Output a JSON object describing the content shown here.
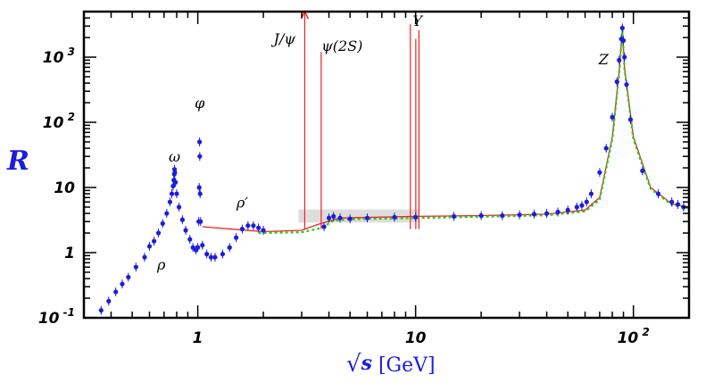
{
  "chart_data": {
    "type": "scatter",
    "title": "",
    "xlabel": {
      "prefix": "√",
      "var": "s",
      "unit": " [GeV]"
    },
    "ylabel": "R",
    "xscale": "log",
    "yscale": "log",
    "xlim": [
      0.3,
      180
    ],
    "ylim": [
      0.1,
      5000
    ],
    "x_ticks": [
      {
        "value": 1,
        "label": "1",
        "exp": ""
      },
      {
        "value": 10,
        "label": "10",
        "exp": ""
      },
      {
        "value": 100,
        "label": "10",
        "exp": "2"
      }
    ],
    "y_ticks": [
      {
        "value": 0.1,
        "label": "10",
        "exp": "-1"
      },
      {
        "value": 1,
        "label": "1",
        "exp": ""
      },
      {
        "value": 10,
        "label": "10",
        "exp": ""
      },
      {
        "value": 100,
        "label": "10",
        "exp": "2"
      },
      {
        "value": 1000,
        "label": "10",
        "exp": "3"
      }
    ],
    "annotations": [
      {
        "text": "ρ",
        "x": 0.68,
        "y": 0.55
      },
      {
        "text": "ω",
        "x": 0.782,
        "y": 25
      },
      {
        "text": "φ",
        "x": 1.02,
        "y": 165
      },
      {
        "text": "ρ′",
        "x": 1.6,
        "y": 4.9
      },
      {
        "text": "J/ψ",
        "x": 2.5,
        "y": 1600
      },
      {
        "text": "ψ(2S)",
        "x": 4.6,
        "y": 1250
      },
      {
        "text": "Υ",
        "x": 10.2,
        "y": 3000
      },
      {
        "text": "Z",
        "x": 73,
        "y": 780
      }
    ],
    "colors": {
      "data": "#1c1cdd",
      "theory_red": "#ee2222",
      "theory_green": "#22cc22",
      "grey_band": "#bbbbbb"
    },
    "series": [
      {
        "style": "data-points",
        "color": "#1c1cdd",
        "points": [
          [
            0.36,
            0.13
          ],
          [
            0.39,
            0.18
          ],
          [
            0.42,
            0.25
          ],
          [
            0.45,
            0.33
          ],
          [
            0.48,
            0.42
          ],
          [
            0.52,
            0.6
          ],
          [
            0.57,
            0.85
          ],
          [
            0.6,
            1.25
          ],
          [
            0.63,
            1.5
          ],
          [
            0.66,
            2.0
          ],
          [
            0.69,
            2.8
          ],
          [
            0.72,
            4.0
          ],
          [
            0.745,
            6.0
          ],
          [
            0.76,
            8.0
          ],
          [
            0.77,
            10.5
          ],
          [
            0.776,
            13
          ],
          [
            0.78,
            16
          ],
          [
            0.782,
            19
          ],
          [
            0.785,
            17
          ],
          [
            0.79,
            12
          ],
          [
            0.8,
            8
          ],
          [
            0.82,
            5
          ],
          [
            0.85,
            3.2
          ],
          [
            0.88,
            2.2
          ],
          [
            0.92,
            1.6
          ],
          [
            0.95,
            1.2
          ],
          [
            0.98,
            1.1
          ],
          [
            1.0,
            1.2
          ],
          [
            1.01,
            3
          ],
          [
            1.015,
            10
          ],
          [
            1.019,
            50
          ],
          [
            1.021,
            30
          ],
          [
            1.025,
            8
          ],
          [
            1.03,
            3
          ],
          [
            1.05,
            1.3
          ],
          [
            1.1,
            0.95
          ],
          [
            1.15,
            0.85
          ],
          [
            1.2,
            0.85
          ],
          [
            1.3,
            0.95
          ],
          [
            1.4,
            1.2
          ],
          [
            1.5,
            1.7
          ],
          [
            1.6,
            2.3
          ],
          [
            1.7,
            2.6
          ],
          [
            1.8,
            2.6
          ],
          [
            1.9,
            2.4
          ],
          [
            2.0,
            2.2
          ],
          [
            3.8,
            2.5
          ],
          [
            4.0,
            3.4
          ],
          [
            4.2,
            3.6
          ],
          [
            4.5,
            3.4
          ],
          [
            5,
            3.3
          ],
          [
            6,
            3.4
          ],
          [
            8,
            3.5
          ],
          [
            10,
            3.5
          ],
          [
            15,
            3.6
          ],
          [
            20,
            3.7
          ],
          [
            25,
            3.7
          ],
          [
            30,
            3.8
          ],
          [
            35,
            3.9
          ],
          [
            40,
            4.0
          ],
          [
            45,
            4.2
          ],
          [
            50,
            4.5
          ],
          [
            55,
            5.0
          ],
          [
            58,
            5.3
          ],
          [
            61,
            6.0
          ],
          [
            64,
            8
          ],
          [
            70,
            17
          ],
          [
            75,
            40
          ],
          [
            80,
            120
          ],
          [
            84,
            420
          ],
          [
            86,
            900
          ],
          [
            88,
            1900
          ],
          [
            89,
            2800
          ],
          [
            90,
            1800
          ],
          [
            91,
            1000
          ],
          [
            93,
            380
          ],
          [
            97,
            110
          ],
          [
            110,
            18
          ],
          [
            130,
            8
          ],
          [
            150,
            6
          ],
          [
            160,
            5.5
          ],
          [
            170,
            5
          ]
        ]
      },
      {
        "style": "line",
        "color": "#ee2222",
        "points": [
          [
            1.05,
            2.5
          ],
          [
            2.0,
            2.1
          ],
          [
            3.0,
            2.2
          ],
          [
            3.55,
            2.7
          ],
          [
            4.5,
            3.4
          ],
          [
            10,
            3.6
          ],
          [
            20,
            3.7
          ],
          [
            40,
            3.9
          ],
          [
            60,
            4.5
          ],
          [
            70,
            7
          ],
          [
            80,
            60
          ],
          [
            86,
            600
          ],
          [
            89,
            2700
          ],
          [
            91,
            700
          ],
          [
            100,
            60
          ],
          [
            120,
            10
          ],
          [
            150,
            5.6
          ],
          [
            180,
            5
          ]
        ]
      },
      {
        "style": "dotted",
        "color": "#22cc22",
        "points": [
          [
            1.9,
            2.0
          ],
          [
            3.0,
            2.05
          ],
          [
            3.7,
            2.4
          ],
          [
            4.2,
            3.1
          ],
          [
            5,
            3.25
          ],
          [
            10,
            3.4
          ],
          [
            20,
            3.55
          ],
          [
            40,
            3.75
          ],
          [
            60,
            4.3
          ],
          [
            70,
            6.5
          ],
          [
            80,
            55
          ],
          [
            86,
            560
          ],
          [
            89,
            2600
          ],
          [
            91,
            650
          ],
          [
            100,
            55
          ],
          [
            120,
            9.5
          ],
          [
            150,
            5.4
          ],
          [
            180,
            4.8
          ]
        ]
      }
    ],
    "resonance_spikes": [
      {
        "x": 3.097,
        "top": 5000,
        "arrow": true
      },
      {
        "x": 3.686,
        "top": 1200,
        "arrow": false
      },
      {
        "x": 9.46,
        "top": 3200,
        "arrow": false
      },
      {
        "x": 10.02,
        "top": 1900,
        "arrow": false
      },
      {
        "x": 10.36,
        "top": 2600,
        "arrow": false
      }
    ]
  }
}
